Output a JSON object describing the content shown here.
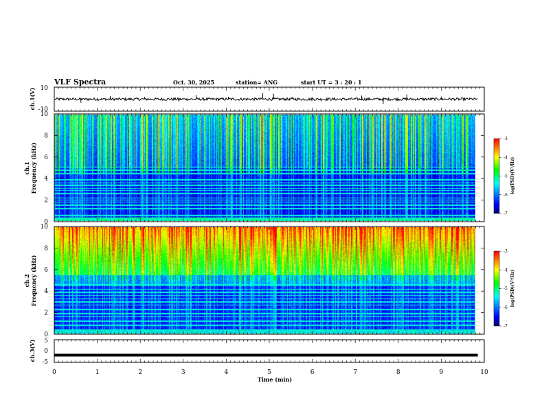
{
  "header": {
    "title": "VLF Spectra",
    "date": "Oct. 30, 2025",
    "station": "station= ANG",
    "start": "start  UT =   3  : 20 : 1"
  },
  "chart_data": [
    {
      "type": "line",
      "name": "ch1-waveform",
      "ylabel": "ch.1(V)",
      "ylim": [
        -10,
        10
      ],
      "yticks": [
        "10",
        "-10"
      ],
      "baseline": 0,
      "x": [
        0.0,
        0.62,
        1.3,
        2.1,
        2.9,
        3.3,
        4.05,
        4.85,
        5.1,
        5.55,
        6.0,
        7.15,
        7.65,
        8.2,
        9.0,
        9.8
      ],
      "y": [
        1.0,
        -3.0,
        2.5,
        1.8,
        -2.0,
        3.5,
        2.0,
        5.0,
        4.5,
        2.0,
        1.5,
        3.0,
        -4.0,
        4.0,
        2.2,
        0.5
      ]
    },
    {
      "type": "heatmap",
      "name": "ch1-spectrogram",
      "ylabel": "ch.1\nFrequency (kHz)",
      "ylim": [
        0,
        10
      ],
      "yticks": [
        "0",
        "2",
        "4",
        "6",
        "8",
        "10"
      ],
      "xlim": [
        0,
        10
      ],
      "data_extent_min": 9.85,
      "colorbar": {
        "title": "log(PSD)(V²/Hz)",
        "range": [
          -7,
          -3
        ],
        "ticks": [
          "-3",
          "-4",
          "-5",
          "-6",
          "-7"
        ]
      }
    },
    {
      "type": "heatmap",
      "name": "ch2-spectrogram",
      "ylabel": "ch.2\nFrequency (kHz)",
      "ylim": [
        0,
        10
      ],
      "yticks": [
        "0",
        "2",
        "4",
        "6",
        "8",
        "10"
      ],
      "xlim": [
        0,
        10
      ],
      "data_extent_min": 9.85,
      "colorbar": {
        "title": "log(PSD)(V²/Hz)",
        "range": [
          -7,
          -3
        ],
        "ticks": [
          "-3",
          "-4",
          "-5",
          "-6",
          "-7"
        ]
      }
    },
    {
      "type": "line",
      "name": "ch3-waveform",
      "ylabel": "ch.3(V)",
      "ylim": [
        -5,
        5
      ],
      "yticks": [
        "5",
        "0",
        "-5"
      ],
      "x": [
        0,
        9.85
      ],
      "y": [
        -1.8,
        -1.8
      ]
    }
  ],
  "xaxis": {
    "label": "Time  (min)",
    "ticks": [
      "0",
      "1",
      "2",
      "3",
      "4",
      "5",
      "6",
      "7",
      "8",
      "9",
      "10"
    ],
    "range": [
      0,
      10
    ]
  },
  "colors": {
    "waveform": "#000000",
    "cmap": [
      "#000070",
      "#0000ff",
      "#00ffff",
      "#00ff00",
      "#ffff00",
      "#ff0000"
    ]
  }
}
